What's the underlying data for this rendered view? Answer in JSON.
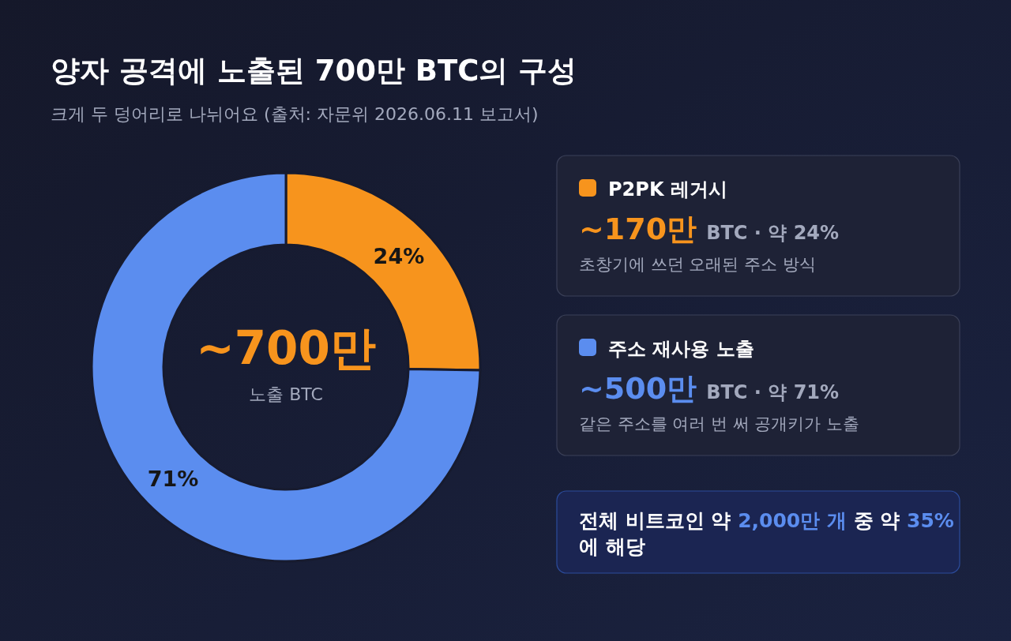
{
  "chart_data": {
    "type": "donut",
    "title": "양자 공격에 노출된 700만 BTC의 구성",
    "subtitle": "크게 두 덩어리로 나뉘어요 (출처: 자문위 2026.06.11 보고서)",
    "categories": [
      "P2PK 레거시",
      "주소 재사용 노출"
    ],
    "values": [
      24,
      71
    ],
    "colors": [
      "#f7941d",
      "#5b8def"
    ],
    "value_labels": [
      "24%",
      "71%"
    ],
    "legend": "right",
    "annotations": [
      "~700만",
      "노출 BTC",
      "~170만",
      "BTC · 약 24%",
      "초창기에 쓰던 오래된 주소 방식",
      "~500만",
      "BTC · 약 71%",
      "같은 주소를 여러 번 써 공개키가 노출",
      "전체 비트코인 약",
      "2,000만 개",
      "중 약",
      "35%",
      "에 해당"
    ]
  }
}
